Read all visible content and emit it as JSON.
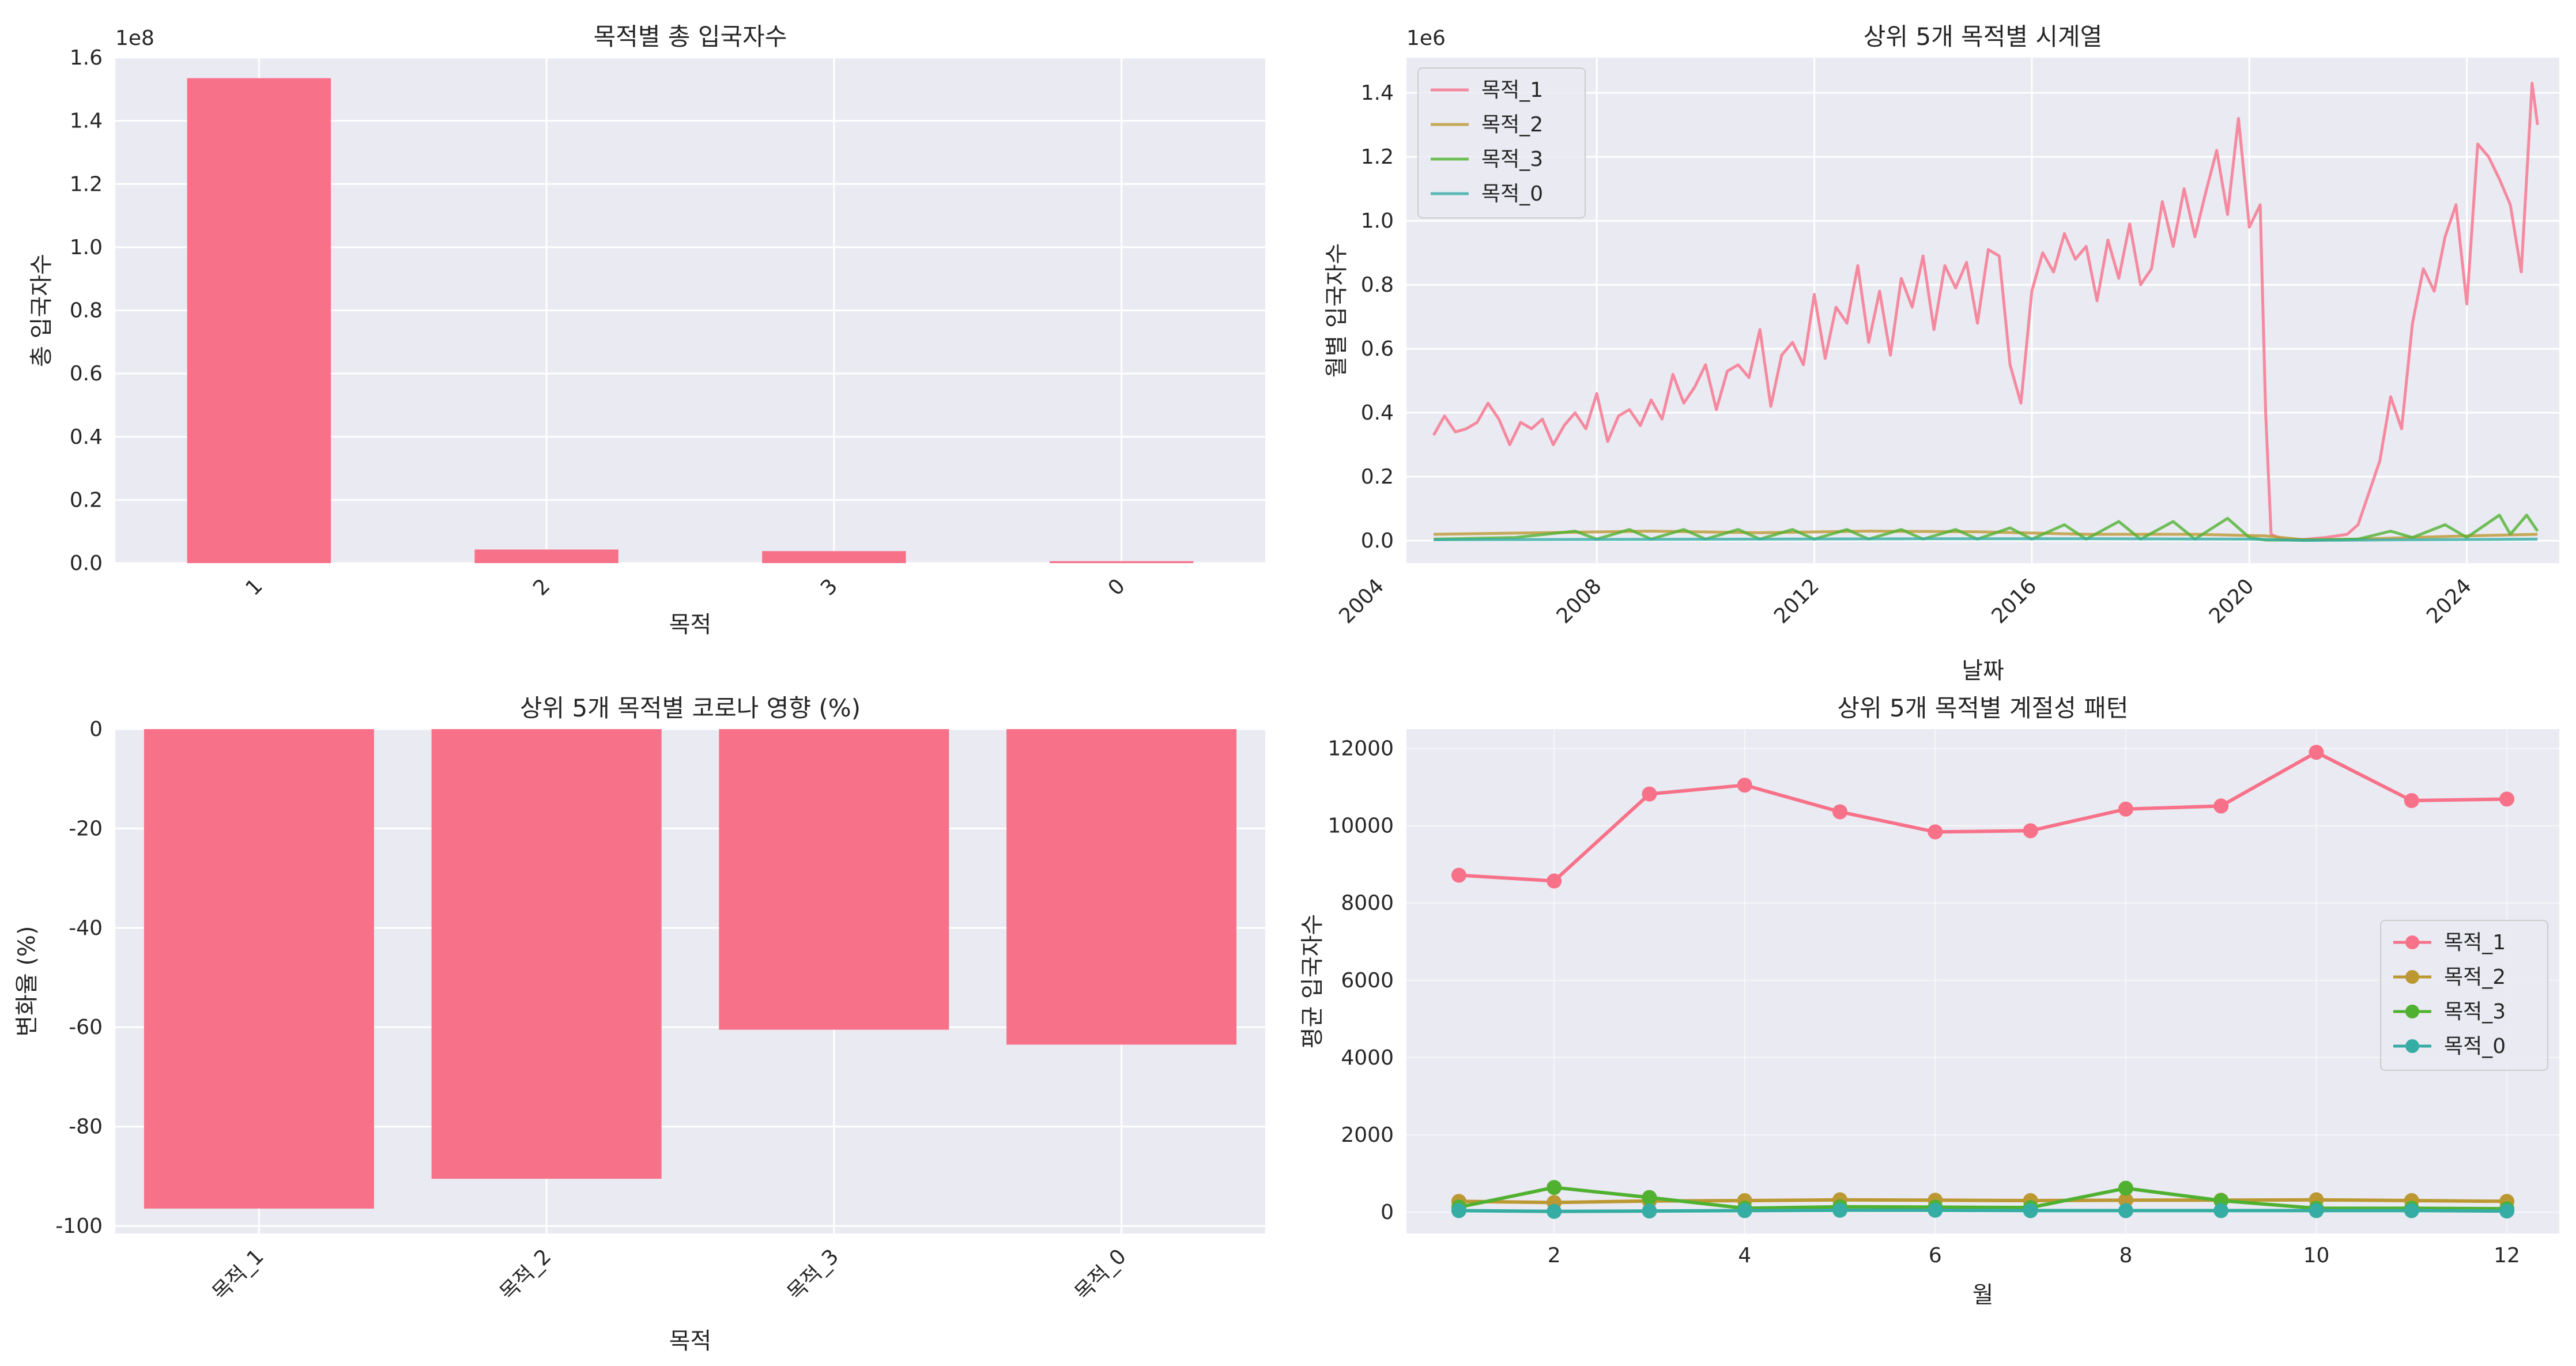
{
  "chart_data": [
    {
      "type": "bar",
      "title": "목적별 총 입국자수",
      "xlabel": "목적",
      "ylabel": "총 입국자수",
      "offset_label": "1e8",
      "categories": [
        "1",
        "2",
        "3",
        "0"
      ],
      "values": [
        1.535,
        0.043,
        0.038,
        0.006
      ],
      "ylim": [
        0,
        1.6
      ],
      "yticks": [
        "0.0",
        "0.2",
        "0.4",
        "0.6",
        "0.8",
        "1.0",
        "1.2",
        "1.4",
        "1.6"
      ],
      "color": "#f77189",
      "grid": true
    },
    {
      "type": "line",
      "title": "상위 5개 목적별 시계열",
      "xlabel": "날짜",
      "ylabel": "월별 입국자수",
      "offset_label": "1e6",
      "xlim": [
        2004.5,
        2025.7
      ],
      "ylim": [
        -0.07,
        1.51
      ],
      "xticks": [
        "2004",
        "2008",
        "2012",
        "2016",
        "2020",
        "2024"
      ],
      "yticks": [
        "0.0",
        "0.2",
        "0.4",
        "0.6",
        "0.8",
        "1.0",
        "1.2",
        "1.4"
      ],
      "legend": "top-left",
      "grid": true,
      "series": [
        {
          "name": "목적_1",
          "color": "#f77189",
          "points": [
            [
              2005.0,
              0.33
            ],
            [
              2005.2,
              0.39
            ],
            [
              2005.4,
              0.34
            ],
            [
              2005.6,
              0.35
            ],
            [
              2005.8,
              0.37
            ],
            [
              2006.0,
              0.43
            ],
            [
              2006.2,
              0.38
            ],
            [
              2006.4,
              0.3
            ],
            [
              2006.6,
              0.37
            ],
            [
              2006.8,
              0.35
            ],
            [
              2007.0,
              0.38
            ],
            [
              2007.2,
              0.3
            ],
            [
              2007.4,
              0.36
            ],
            [
              2007.6,
              0.4
            ],
            [
              2007.8,
              0.35
            ],
            [
              2008.0,
              0.46
            ],
            [
              2008.2,
              0.31
            ],
            [
              2008.4,
              0.39
            ],
            [
              2008.6,
              0.41
            ],
            [
              2008.8,
              0.36
            ],
            [
              2009.0,
              0.44
            ],
            [
              2009.2,
              0.38
            ],
            [
              2009.4,
              0.52
            ],
            [
              2009.6,
              0.43
            ],
            [
              2009.8,
              0.48
            ],
            [
              2010.0,
              0.55
            ],
            [
              2010.2,
              0.41
            ],
            [
              2010.4,
              0.53
            ],
            [
              2010.6,
              0.55
            ],
            [
              2010.8,
              0.51
            ],
            [
              2011.0,
              0.66
            ],
            [
              2011.2,
              0.42
            ],
            [
              2011.4,
              0.58
            ],
            [
              2011.6,
              0.62
            ],
            [
              2011.8,
              0.55
            ],
            [
              2012.0,
              0.77
            ],
            [
              2012.2,
              0.57
            ],
            [
              2012.4,
              0.73
            ],
            [
              2012.6,
              0.68
            ],
            [
              2012.8,
              0.86
            ],
            [
              2013.0,
              0.62
            ],
            [
              2013.2,
              0.78
            ],
            [
              2013.4,
              0.58
            ],
            [
              2013.6,
              0.82
            ],
            [
              2013.8,
              0.73
            ],
            [
              2014.0,
              0.89
            ],
            [
              2014.2,
              0.66
            ],
            [
              2014.4,
              0.86
            ],
            [
              2014.6,
              0.79
            ],
            [
              2014.8,
              0.87
            ],
            [
              2015.0,
              0.68
            ],
            [
              2015.2,
              0.91
            ],
            [
              2015.4,
              0.89
            ],
            [
              2015.6,
              0.55
            ],
            [
              2015.8,
              0.43
            ],
            [
              2016.0,
              0.78
            ],
            [
              2016.2,
              0.9
            ],
            [
              2016.4,
              0.84
            ],
            [
              2016.6,
              0.96
            ],
            [
              2016.8,
              0.88
            ],
            [
              2017.0,
              0.92
            ],
            [
              2017.2,
              0.75
            ],
            [
              2017.4,
              0.94
            ],
            [
              2017.6,
              0.82
            ],
            [
              2017.8,
              0.99
            ],
            [
              2018.0,
              0.8
            ],
            [
              2018.2,
              0.85
            ],
            [
              2018.4,
              1.06
            ],
            [
              2018.6,
              0.92
            ],
            [
              2018.8,
              1.1
            ],
            [
              2019.0,
              0.95
            ],
            [
              2019.2,
              1.09
            ],
            [
              2019.4,
              1.22
            ],
            [
              2019.6,
              1.02
            ],
            [
              2019.8,
              1.32
            ],
            [
              2020.0,
              0.98
            ],
            [
              2020.2,
              1.05
            ],
            [
              2020.3,
              0.4
            ],
            [
              2020.4,
              0.02
            ],
            [
              2020.6,
              0.005
            ],
            [
              2021.0,
              0.004
            ],
            [
              2021.4,
              0.01
            ],
            [
              2021.8,
              0.02
            ],
            [
              2022.0,
              0.05
            ],
            [
              2022.2,
              0.15
            ],
            [
              2022.4,
              0.25
            ],
            [
              2022.6,
              0.45
            ],
            [
              2022.8,
              0.35
            ],
            [
              2023.0,
              0.68
            ],
            [
              2023.2,
              0.85
            ],
            [
              2023.4,
              0.78
            ],
            [
              2023.6,
              0.95
            ],
            [
              2023.8,
              1.05
            ],
            [
              2024.0,
              0.74
            ],
            [
              2024.2,
              1.24
            ],
            [
              2024.4,
              1.2
            ],
            [
              2024.6,
              1.13
            ],
            [
              2024.8,
              1.05
            ],
            [
              2025.0,
              0.84
            ],
            [
              2025.2,
              1.43
            ],
            [
              2025.3,
              1.3
            ]
          ]
        },
        {
          "name": "목적_2",
          "color": "#bb9832",
          "points": [
            [
              2005.0,
              0.02
            ],
            [
              2007.0,
              0.025
            ],
            [
              2009.0,
              0.03
            ],
            [
              2011.0,
              0.025
            ],
            [
              2013.0,
              0.03
            ],
            [
              2015.0,
              0.028
            ],
            [
              2017.0,
              0.02
            ],
            [
              2019.0,
              0.02
            ],
            [
              2020.3,
              0.015
            ],
            [
              2021.0,
              0.003
            ],
            [
              2022.0,
              0.005
            ],
            [
              2023.0,
              0.01
            ],
            [
              2024.0,
              0.015
            ],
            [
              2025.3,
              0.02
            ]
          ]
        },
        {
          "name": "목적_3",
          "color": "#50b131",
          "points": [
            [
              2005.0,
              0.005
            ],
            [
              2006.5,
              0.01
            ],
            [
              2007.6,
              0.03
            ],
            [
              2008.0,
              0.005
            ],
            [
              2008.6,
              0.035
            ],
            [
              2009.0,
              0.005
            ],
            [
              2009.6,
              0.035
            ],
            [
              2010.0,
              0.005
            ],
            [
              2010.6,
              0.035
            ],
            [
              2011.0,
              0.005
            ],
            [
              2011.6,
              0.035
            ],
            [
              2012.0,
              0.005
            ],
            [
              2012.6,
              0.035
            ],
            [
              2013.0,
              0.005
            ],
            [
              2013.6,
              0.035
            ],
            [
              2014.0,
              0.005
            ],
            [
              2014.6,
              0.035
            ],
            [
              2015.0,
              0.005
            ],
            [
              2015.6,
              0.04
            ],
            [
              2016.0,
              0.005
            ],
            [
              2016.6,
              0.05
            ],
            [
              2017.0,
              0.005
            ],
            [
              2017.6,
              0.06
            ],
            [
              2018.0,
              0.005
            ],
            [
              2018.6,
              0.06
            ],
            [
              2019.0,
              0.005
            ],
            [
              2019.6,
              0.07
            ],
            [
              2020.0,
              0.01
            ],
            [
              2020.3,
              0.002
            ],
            [
              2021.0,
              0.002
            ],
            [
              2022.0,
              0.005
            ],
            [
              2022.6,
              0.03
            ],
            [
              2023.0,
              0.01
            ],
            [
              2023.6,
              0.05
            ],
            [
              2024.0,
              0.01
            ],
            [
              2024.6,
              0.08
            ],
            [
              2024.8,
              0.02
            ],
            [
              2025.1,
              0.08
            ],
            [
              2025.3,
              0.03
            ]
          ]
        },
        {
          "name": "목적_0",
          "color": "#36ada4",
          "points": [
            [
              2005.0,
              0.003
            ],
            [
              2008.0,
              0.004
            ],
            [
              2011.0,
              0.005
            ],
            [
              2014.0,
              0.006
            ],
            [
              2017.0,
              0.006
            ],
            [
              2020.0,
              0.005
            ],
            [
              2021.0,
              0.001
            ],
            [
              2023.0,
              0.003
            ],
            [
              2025.3,
              0.005
            ]
          ]
        }
      ]
    },
    {
      "type": "bar",
      "title": "상위 5개 목적별 코로나 영향 (%)",
      "xlabel": "목적",
      "ylabel": "변화율 (%)",
      "categories": [
        "목적_1",
        "목적_2",
        "목적_3",
        "목적_0"
      ],
      "values": [
        -96.5,
        -90.5,
        -60.5,
        -63.5
      ],
      "ylim": [
        -101.5,
        0
      ],
      "yticks": [
        "-100",
        "-80",
        "-60",
        "-40",
        "-20",
        "0"
      ],
      "color": "#f77189",
      "grid": true
    },
    {
      "type": "line",
      "title": "상위 5개 목적별 계절성 패턴",
      "xlabel": "월",
      "ylabel": "평균 입국자수",
      "xlim": [
        0.45,
        12.55
      ],
      "ylim": [
        -550,
        12500
      ],
      "xticks": [
        "2",
        "4",
        "6",
        "8",
        "10",
        "12"
      ],
      "yticks": [
        "0",
        "2000",
        "4000",
        "6000",
        "8000",
        "10000",
        "12000"
      ],
      "legend": "center-right",
      "grid": true,
      "x": [
        1,
        2,
        3,
        4,
        5,
        6,
        7,
        8,
        9,
        10,
        11,
        12
      ],
      "series": [
        {
          "name": "목적_1",
          "color": "#f77189",
          "values": [
            8720,
            8570,
            10820,
            11050,
            10360,
            9840,
            9870,
            10430,
            10510,
            11900,
            10650,
            10690
          ]
        },
        {
          "name": "목적_2",
          "color": "#bb9832",
          "values": [
            280,
            250,
            290,
            300,
            320,
            310,
            300,
            310,
            310,
            320,
            300,
            280
          ]
        },
        {
          "name": "목적_3",
          "color": "#50b131",
          "values": [
            130,
            640,
            380,
            100,
            140,
            130,
            120,
            620,
            300,
            100,
            100,
            90
          ]
        },
        {
          "name": "목적_0",
          "color": "#36ada4",
          "values": [
            40,
            20,
            30,
            40,
            50,
            50,
            40,
            40,
            40,
            40,
            40,
            30
          ]
        }
      ]
    }
  ]
}
